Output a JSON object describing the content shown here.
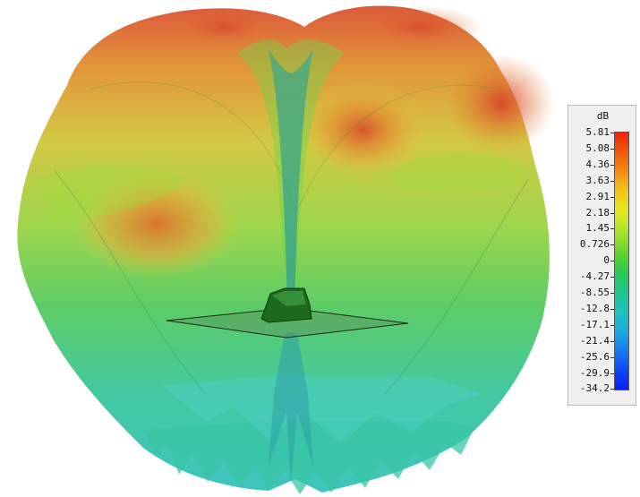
{
  "scale": {
    "unit": "dB",
    "ticks": [
      "5.81",
      "5.08",
      "4.36",
      "3.63",
      "2.91",
      "2.18",
      "1.45",
      "0.726",
      "0",
      "-4.27",
      "-8.55",
      "-12.8",
      "-17.1",
      "-21.4",
      "-25.6",
      "-29.9",
      "-34.2"
    ],
    "colors": {
      "high": "#f0230a",
      "upper": "#f49012",
      "mid": "#e6e61e",
      "lowmid": "#56d232",
      "low": "#1ec2c0",
      "min": "#0a1ef4"
    }
  },
  "model": {
    "antenna": "patch-antenna",
    "ground_plane": "ground-plane"
  }
}
